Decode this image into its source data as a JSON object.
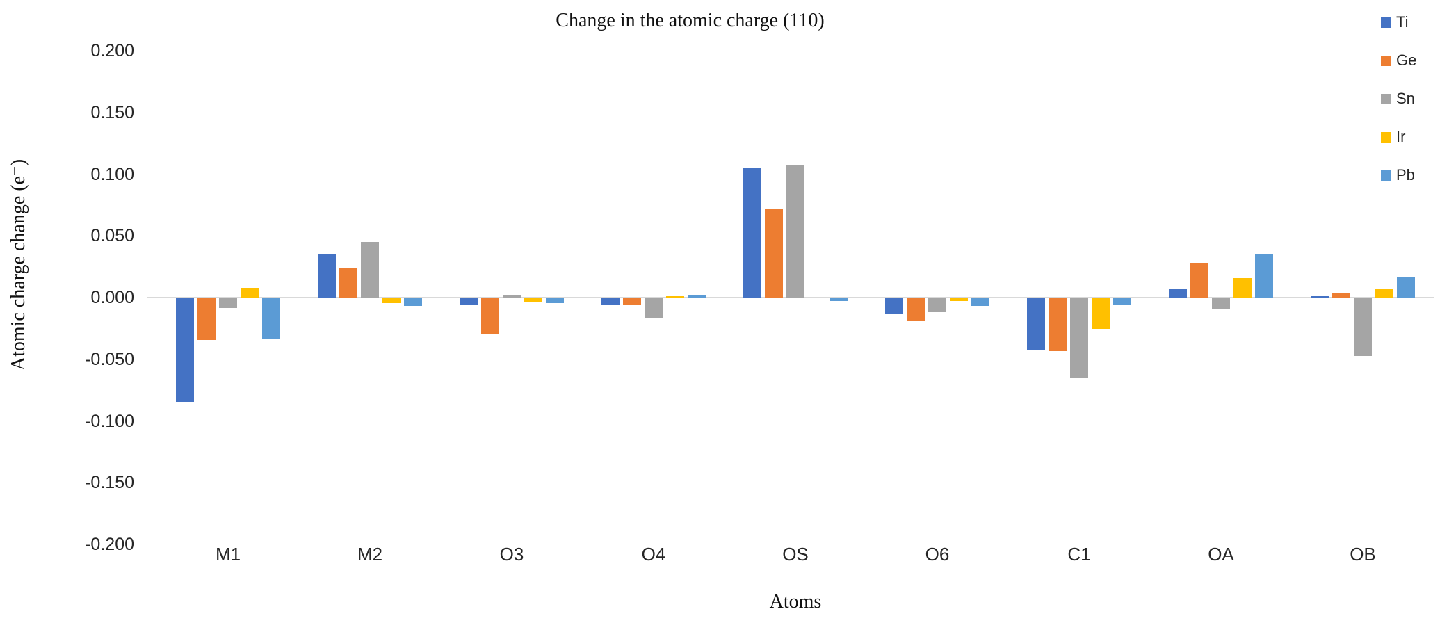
{
  "chart": {
    "title": "Change in the atomic charge (110)",
    "y_axis_title": "Atomic charge change (e⁻)",
    "x_axis_title": "Atoms",
    "y_tick_labels": [
      "0.200",
      "0.150",
      "0.100",
      "0.050",
      "0.000",
      "-0.050",
      "-0.100",
      "-0.150",
      "-0.200"
    ]
  },
  "chart_data": {
    "type": "bar",
    "title": "Change in the atomic charge (110)",
    "xlabel": "Atoms",
    "ylabel": "Atomic charge change (e⁻)",
    "ylim": [
      -0.2,
      0.2
    ],
    "y_tick_step": 0.05,
    "grid": false,
    "legend_position": "right",
    "zero_line_color": "#d9d9d9",
    "categories": [
      "M1",
      "M2",
      "O3",
      "O4",
      "OS",
      "O6",
      "C1",
      "OA",
      "OB"
    ],
    "series": [
      {
        "name": "Ti",
        "color": "#4472C4",
        "values": [
          -0.084,
          0.035,
          -0.005,
          -0.005,
          0.105,
          -0.013,
          -0.042,
          0.007,
          0.001
        ]
      },
      {
        "name": "Ge",
        "color": "#ED7D31",
        "values": [
          -0.034,
          0.024,
          -0.029,
          -0.005,
          0.072,
          -0.018,
          -0.043,
          0.028,
          0.004
        ]
      },
      {
        "name": "Sn",
        "color": "#A5A5A5",
        "values": [
          -0.008,
          0.045,
          0.002,
          -0.016,
          0.107,
          -0.011,
          -0.065,
          -0.009,
          -0.047
        ]
      },
      {
        "name": "Ir",
        "color": "#FFC000",
        "values": [
          0.008,
          -0.004,
          -0.003,
          0.001,
          0.0,
          -0.002,
          -0.025,
          0.016,
          0.007
        ]
      },
      {
        "name": "Pb",
        "color": "#5B9BD5",
        "values": [
          -0.033,
          -0.006,
          -0.004,
          0.002,
          -0.002,
          -0.006,
          -0.005,
          0.035,
          0.017
        ]
      }
    ]
  }
}
